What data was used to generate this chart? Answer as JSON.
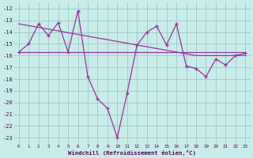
{
  "x": [
    0,
    1,
    2,
    3,
    4,
    5,
    6,
    7,
    8,
    9,
    10,
    11,
    12,
    13,
    14,
    15,
    16,
    17,
    18,
    19,
    20,
    21,
    22,
    23
  ],
  "line1": [
    -15.7,
    -15.0,
    -13.3,
    -14.3,
    -13.2,
    -15.7,
    -12.2,
    -17.8,
    -19.7,
    -20.5,
    -23.0,
    -19.2,
    -15.1,
    -14.0,
    -13.5,
    -15.1,
    -13.3,
    -16.9,
    -17.1,
    -17.8,
    -16.3,
    -16.8,
    -16.0,
    -15.8
  ],
  "trend": [
    -13.3,
    -13.45,
    -13.6,
    -13.75,
    -13.9,
    -14.05,
    -14.2,
    -14.35,
    -14.5,
    -14.65,
    -14.8,
    -14.95,
    -15.1,
    -15.25,
    -15.4,
    -15.55,
    -15.7,
    -15.85,
    -16.0,
    -16.0,
    -16.0,
    -16.0,
    -16.0,
    -16.0
  ],
  "flat_line": [
    -15.7,
    -15.7,
    -15.7,
    -15.7,
    -15.7,
    -15.7,
    -15.7,
    -15.7,
    -15.7,
    -15.7,
    -15.7,
    -15.7,
    -15.7,
    -15.7,
    -15.7,
    -15.7,
    -15.7,
    -15.7,
    -15.7,
    -15.7,
    -15.7,
    -15.7,
    -15.7,
    -15.7
  ],
  "background_color": "#c8ece9",
  "grid_color": "#a0cccc",
  "line_color": "#993399",
  "ylim": [
    -23.5,
    -11.5
  ],
  "yticks": [
    -12,
    -13,
    -14,
    -15,
    -16,
    -17,
    -18,
    -19,
    -20,
    -21,
    -22,
    -23
  ],
  "xticks": [
    0,
    1,
    2,
    3,
    4,
    5,
    6,
    7,
    8,
    9,
    10,
    11,
    12,
    13,
    14,
    15,
    16,
    17,
    18,
    19,
    20,
    21,
    22,
    23
  ],
  "xlabel": "Windchill (Refroidissement éolien,°C)"
}
